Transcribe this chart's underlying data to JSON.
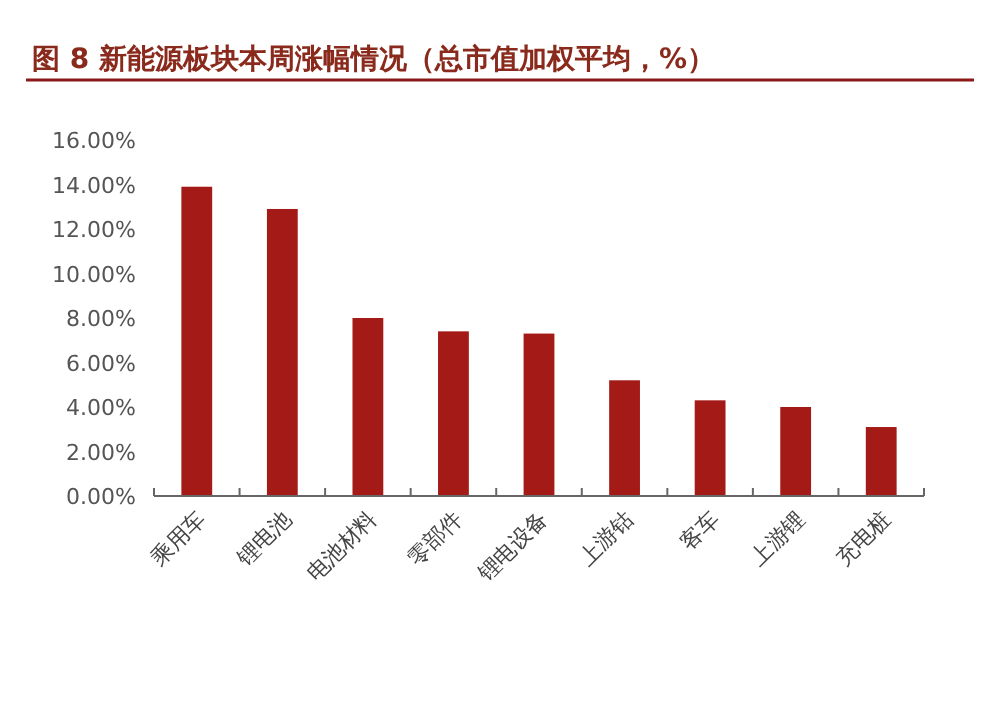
{
  "chart_data": {
    "type": "bar",
    "title": "图 8 新能源板块本周涨幅情况（总市值加权平均，%）",
    "categories": [
      "乘用车",
      "锂电池",
      "电池材料",
      "零部件",
      "锂电设备",
      "上游钴",
      "客车",
      "上游锂",
      "充电桩"
    ],
    "values": [
      13.9,
      12.9,
      8.0,
      7.4,
      7.3,
      5.2,
      4.3,
      4.0,
      3.1
    ],
    "color": "#a31a17",
    "ylim": [
      0,
      16
    ],
    "yticks": [
      {
        "value": 0,
        "label": "0.00%"
      },
      {
        "value": 2,
        "label": "2.00%"
      },
      {
        "value": 4,
        "label": "4.00%"
      },
      {
        "value": 6,
        "label": "6.00%"
      },
      {
        "value": 8,
        "label": "8.00%"
      },
      {
        "value": 10,
        "label": "10.00%"
      },
      {
        "value": 12,
        "label": "12.00%"
      },
      {
        "value": 14,
        "label": "14.00%"
      },
      {
        "value": 16,
        "label": "16.00%"
      }
    ],
    "grid": false
  }
}
